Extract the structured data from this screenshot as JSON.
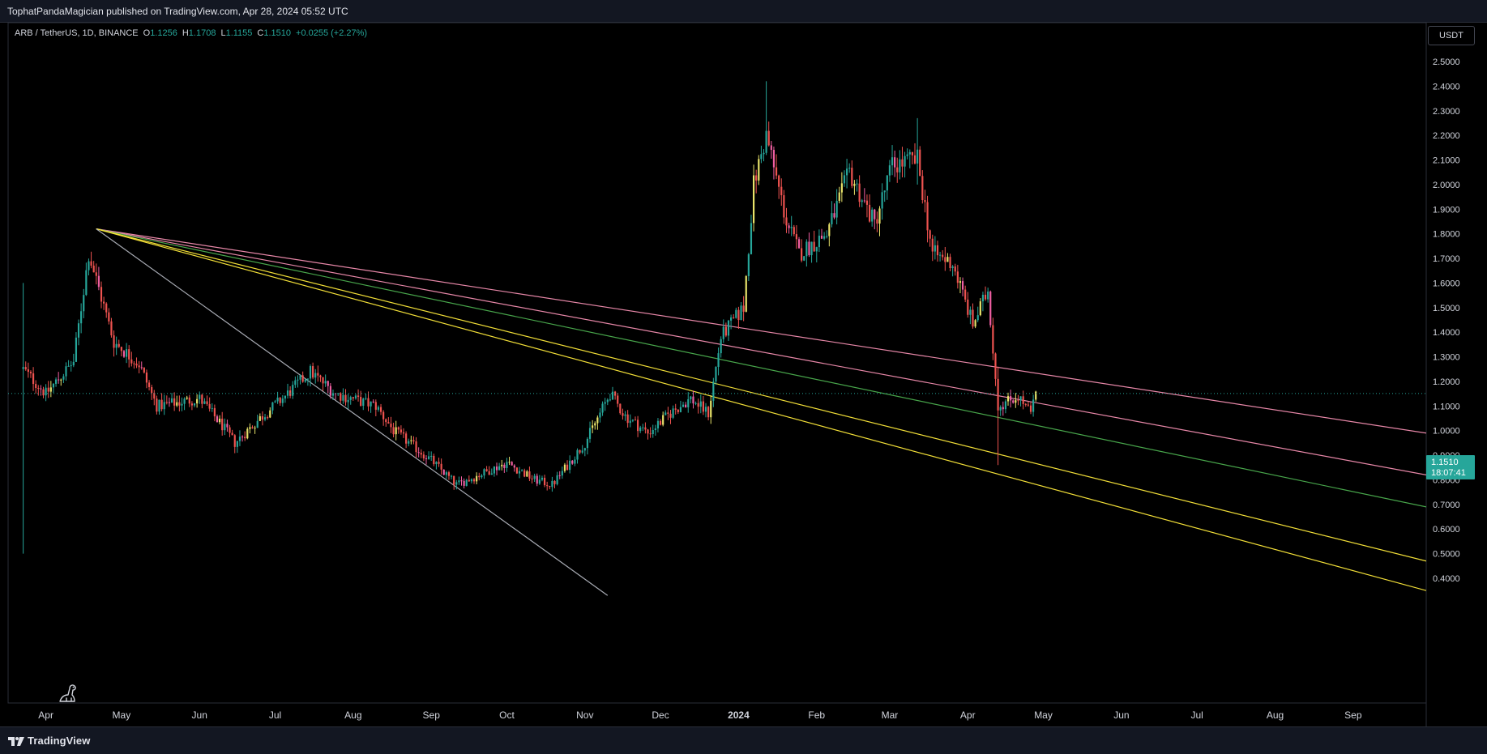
{
  "header": {
    "publisher_text": "TophatPandaMagician published on TradingView.com, Apr 28, 2024 05:52 UTC"
  },
  "legend": {
    "symbol": "ARB / TetherUS, 1D, BINANCE",
    "o_label": "O",
    "o_value": "1.1256",
    "h_label": "H",
    "h_value": "1.1708",
    "l_label": "L",
    "l_value": "1.1155",
    "c_label": "C",
    "c_value": "1.1510",
    "change": "+0.0255 (+2.27%)"
  },
  "currency_button": {
    "label": "USDT"
  },
  "price_tag": {
    "price": "1.1510",
    "countdown": "18:07:41"
  },
  "footer": {
    "brand": "TradingView",
    "logo_icon": "tradingview-logo-icon",
    "mascot_icon": "dinosaur-icon"
  },
  "colors": {
    "up": "#26a69a",
    "down": "#ef5350",
    "highlight_up": "#e8e36a",
    "highlight_down": "#f05fa2",
    "fan_pink": "#f48fb1",
    "fan_green": "#4caf50",
    "fan_yellow": "#ffeb3b",
    "fan_gray": "#b2b5be"
  },
  "chart_data": {
    "type": "candlestick",
    "title": "",
    "y_axis": {
      "ticks": [
        "2.5000",
        "2.4000",
        "2.3000",
        "2.2000",
        "2.1000",
        "2.0000",
        "1.9000",
        "1.8000",
        "1.7000",
        "1.6000",
        "1.5000",
        "1.4000",
        "1.3000",
        "1.2000",
        "1.1000",
        "1.0000",
        "0.9000",
        "0.8000",
        "0.7000",
        "0.6000",
        "0.5000",
        "0.4000"
      ],
      "range": [
        0.32,
        2.55
      ]
    },
    "x_axis": {
      "labels": [
        "Apr",
        "May",
        "Jun",
        "Jul",
        "Aug",
        "Sep",
        "Oct",
        "Nov",
        "Dec",
        "2024",
        "Feb",
        "Mar",
        "Apr",
        "May",
        "Jun",
        "Jul",
        "Aug",
        "Sep"
      ],
      "range": [
        "2023-03-17",
        "2024-09-30"
      ]
    },
    "current_price": 1.151,
    "price_anchors": [
      [
        "2023-03-23",
        1.25
      ],
      [
        "2023-04-01",
        1.15
      ],
      [
        "2023-04-12",
        1.28
      ],
      [
        "2023-04-18",
        1.72
      ],
      [
        "2023-04-20",
        1.65
      ],
      [
        "2023-04-28",
        1.36
      ],
      [
        "2023-05-08",
        1.27
      ],
      [
        "2023-05-15",
        1.1
      ],
      [
        "2023-06-01",
        1.13
      ],
      [
        "2023-06-10",
        1.02
      ],
      [
        "2023-06-15",
        0.95
      ],
      [
        "2023-06-25",
        1.05
      ],
      [
        "2023-07-05",
        1.14
      ],
      [
        "2023-07-15",
        1.24
      ],
      [
        "2023-07-25",
        1.15
      ],
      [
        "2023-08-10",
        1.1
      ],
      [
        "2023-08-17",
        1.0
      ],
      [
        "2023-09-01",
        0.88
      ],
      [
        "2023-09-11",
        0.78
      ],
      [
        "2023-09-20",
        0.82
      ],
      [
        "2023-10-01",
        0.87
      ],
      [
        "2023-10-12",
        0.8
      ],
      [
        "2023-10-19",
        0.78
      ],
      [
        "2023-11-01",
        0.95
      ],
      [
        "2023-11-11",
        1.15
      ],
      [
        "2023-11-17",
        1.06
      ],
      [
        "2023-11-26",
        0.99
      ],
      [
        "2023-12-06",
        1.08
      ],
      [
        "2023-12-13",
        1.13
      ],
      [
        "2023-12-20",
        1.07
      ],
      [
        "2023-12-25",
        1.38
      ],
      [
        "2024-01-03",
        1.5
      ],
      [
        "2024-01-07",
        2.0
      ],
      [
        "2024-01-12",
        2.2
      ],
      [
        "2024-01-20",
        1.85
      ],
      [
        "2024-01-25",
        1.72
      ],
      [
        "2024-02-05",
        1.8
      ],
      [
        "2024-02-14",
        2.05
      ],
      [
        "2024-02-24",
        1.84
      ],
      [
        "2024-03-02",
        2.08
      ],
      [
        "2024-03-12",
        2.1
      ],
      [
        "2024-03-18",
        1.72
      ],
      [
        "2024-03-26",
        1.68
      ],
      [
        "2024-04-03",
        1.43
      ],
      [
        "2024-04-09",
        1.57
      ],
      [
        "2024-04-13",
        1.1
      ],
      [
        "2024-04-21",
        1.14
      ],
      [
        "2024-04-26",
        1.07
      ],
      [
        "2024-04-28",
        1.15
      ]
    ],
    "extremes": [
      [
        "2023-03-23",
        1.6,
        0.5
      ],
      [
        "2024-01-12",
        2.42,
        2.12
      ],
      [
        "2024-03-12",
        2.27,
        2.0
      ],
      [
        "2024-04-13",
        1.26,
        0.86
      ]
    ],
    "fan_lines": [
      {
        "from": [
          "2023-04-21",
          1.82
        ],
        "to": [
          "2024-09-30",
          0.99
        ],
        "color": "fan_pink"
      },
      {
        "from": [
          "2023-04-21",
          1.82
        ],
        "to": [
          "2024-09-30",
          0.82
        ],
        "color": "fan_pink"
      },
      {
        "from": [
          "2023-04-21",
          1.82
        ],
        "to": [
          "2024-09-30",
          0.69
        ],
        "color": "fan_green"
      },
      {
        "from": [
          "2023-04-21",
          1.82
        ],
        "to": [
          "2024-09-30",
          0.47
        ],
        "color": "fan_yellow"
      },
      {
        "from": [
          "2023-04-21",
          1.82
        ],
        "to": [
          "2024-09-30",
          0.35
        ],
        "color": "fan_yellow"
      },
      {
        "from": [
          "2023-04-21",
          1.82
        ],
        "to": [
          "2023-11-10",
          0.33
        ],
        "color": "fan_gray"
      }
    ]
  }
}
